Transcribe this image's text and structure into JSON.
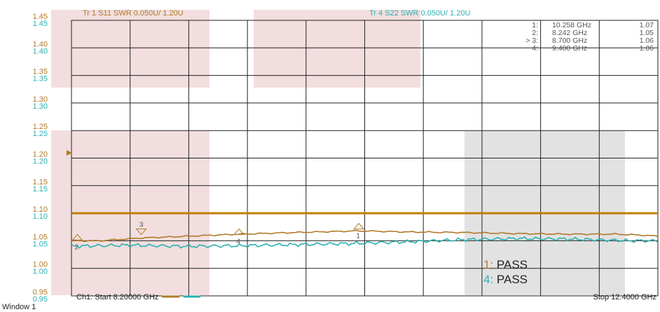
{
  "window_label": "Window 1",
  "colors": {
    "tr1": "#b07a2a",
    "tr4": "#2ab0b0",
    "limit": "#c07f00",
    "grid": "#222222",
    "pink": "#f2dede",
    "gray": "#e2e2e2"
  },
  "trace_headers": [
    {
      "text": "Tr  1   S11 SWR 0.050U/  1.20U",
      "color": "tr1"
    },
    {
      "text": "Tr  4   S22 SWR 0.050U/  1.20U",
      "color": "tr4"
    }
  ],
  "y_ticks": [
    "1.45",
    "1.40",
    "1.35",
    "1.30",
    "1.25",
    "1.20",
    "1.15",
    "1.10",
    "1.05",
    "1.00",
    "0.95"
  ],
  "markers_table": [
    {
      "id": "1:",
      "freq": "10.258 GHz",
      "value": "1.07"
    },
    {
      "id": "2:",
      "freq": "8.242 GHz",
      "value": "1.05"
    },
    {
      "id": "> 3:",
      "freq": "8.700 GHz",
      "value": "1.06"
    },
    {
      "id": "4:",
      "freq": "9.400 GHz",
      "value": "1.06"
    }
  ],
  "marker_labels": [
    "1",
    "2",
    "3",
    "4"
  ],
  "pass_results": [
    {
      "num": "1",
      "sep": ": ",
      "text": "PASS",
      "color": "tr1"
    },
    {
      "num": "4",
      "sep": ": ",
      "text": "PASS",
      "color": "tr4"
    }
  ],
  "footer": {
    "start": "Ch1:  Start  8.20000 GHz",
    "stop": "Stop  12.4000 GHz"
  },
  "chart_data": {
    "type": "line",
    "xlim": [
      8.2,
      12.4
    ],
    "ylim": [
      0.95,
      1.45
    ],
    "x_unit": "GHz",
    "grid": true,
    "limit_line": 1.1,
    "series": [
      {
        "name": "Tr 1 S11 SWR",
        "color": "tr1",
        "x": [
          8.2,
          8.4,
          8.7,
          9.0,
          9.4,
          9.8,
          10.258,
          10.6,
          11.0,
          11.4,
          11.8,
          12.1,
          12.3,
          12.4
        ],
        "y": [
          1.05,
          1.05,
          1.055,
          1.058,
          1.062,
          1.065,
          1.068,
          1.066,
          1.065,
          1.063,
          1.062,
          1.062,
          1.06,
          1.058
        ]
      },
      {
        "name": "Tr 4 S22 SWR",
        "color": "tr4",
        "x": [
          8.2,
          8.6,
          9.0,
          9.4,
          9.8,
          10.2,
          10.6,
          11.0,
          11.4,
          11.8,
          12.2,
          12.4
        ],
        "y": [
          1.04,
          1.042,
          1.04,
          1.041,
          1.043,
          1.045,
          1.048,
          1.052,
          1.054,
          1.053,
          1.05,
          1.05
        ]
      }
    ],
    "markers": [
      {
        "label": "1",
        "trace": "Tr 1 S11 SWR",
        "x": 10.258,
        "y": 1.07,
        "active": false
      },
      {
        "label": "2",
        "trace": "Tr 1 S11 SWR",
        "x": 8.242,
        "y": 1.05,
        "active": false
      },
      {
        "label": "3",
        "trace": "Tr 1 S11 SWR",
        "x": 8.7,
        "y": 1.06,
        "active": true
      },
      {
        "label": "4",
        "trace": "Tr 1 S11 SWR",
        "x": 9.4,
        "y": 1.06,
        "active": false
      }
    ]
  }
}
